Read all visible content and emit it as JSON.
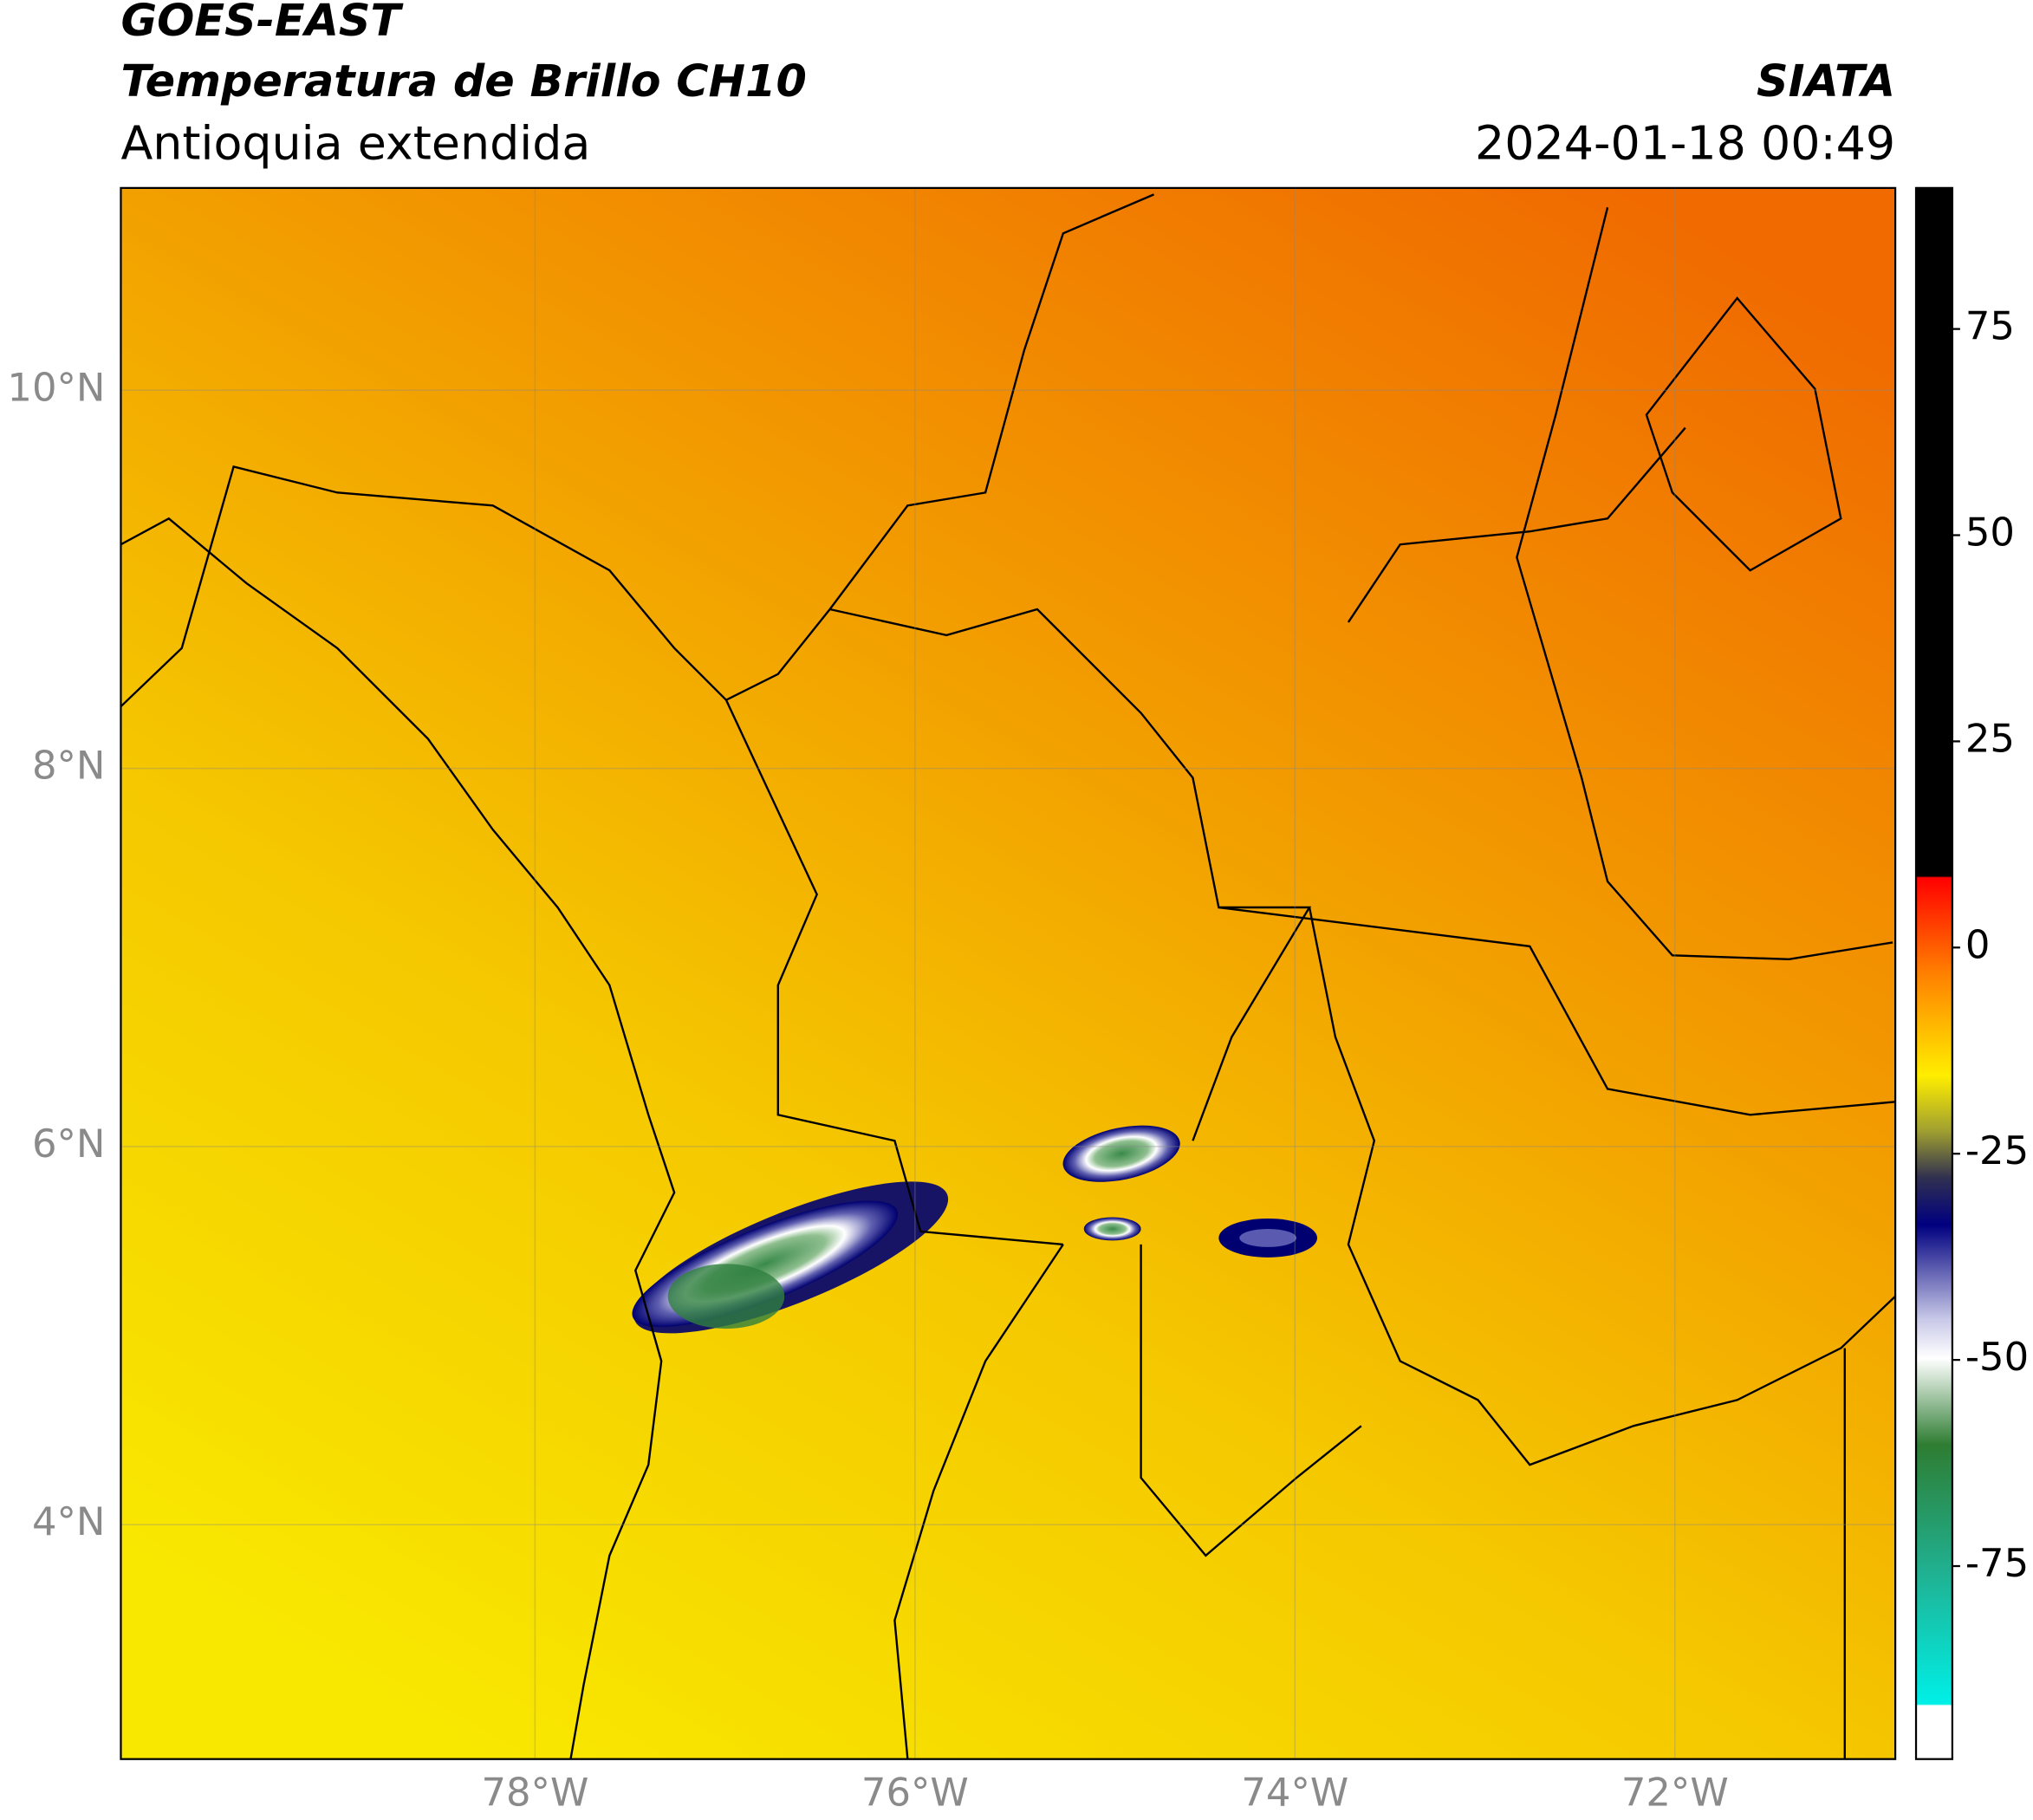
{
  "header": {
    "title": "GOES-EAST",
    "subtitle": "Temperatura de Brillo CH10",
    "region": "Antioquia extendida",
    "source": "SIATA",
    "timestamp": "2024-01-18 00:49"
  },
  "map": {
    "xlim": [
      -80.18,
      -70.84
    ],
    "ylim": [
      2.76,
      11.07
    ],
    "xticks": [
      {
        "value": -78,
        "label": "78°W"
      },
      {
        "value": -76,
        "label": "76°W"
      },
      {
        "value": -74,
        "label": "74°W"
      },
      {
        "value": -72,
        "label": "72°W"
      }
    ],
    "yticks": [
      {
        "value": 4,
        "label": "4°N"
      },
      {
        "value": 6,
        "label": "6°N"
      },
      {
        "value": 8,
        "label": "8°N"
      },
      {
        "value": 10,
        "label": "10°N"
      }
    ],
    "grid": true
  },
  "colorbar": {
    "lim": [
      -98.4,
      92.1
    ],
    "ticks": [
      -75,
      -50,
      -25,
      0,
      25,
      50,
      75
    ]
  }
}
